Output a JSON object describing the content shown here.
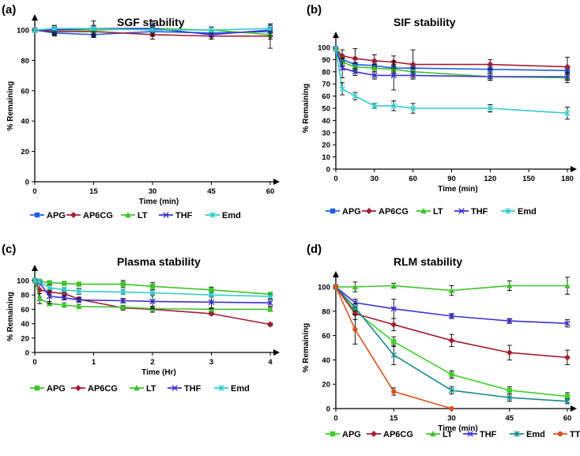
{
  "chart_data": [
    {
      "panel_label": "(a)",
      "type": "line",
      "title": "SGF stability",
      "xlabel": "Time (min)",
      "ylabel": "% Remaining",
      "xlim": [
        0,
        60
      ],
      "ylim": [
        0,
        100
      ],
      "xticks": [
        0,
        15,
        30,
        45,
        60
      ],
      "yticks": [
        0,
        20,
        40,
        60,
        80,
        100
      ],
      "x": [
        0,
        5,
        15,
        30,
        45,
        60
      ],
      "series": [
        {
          "name": "APG",
          "color": "#1f5fe0",
          "marker": "square",
          "values": [
            100,
            98,
            97,
            99,
            98,
            99
          ],
          "errors": [
            0,
            2,
            2,
            3,
            2,
            3
          ]
        },
        {
          "name": "AP6CG",
          "color": "#a41e34",
          "marker": "diamond",
          "values": [
            100,
            99,
            99,
            97,
            96,
            96
          ],
          "errors": [
            0,
            2,
            3,
            3,
            2,
            8
          ]
        },
        {
          "name": "LT",
          "color": "#3ec32a",
          "marker": "triangle",
          "values": [
            100,
            100,
            100,
            101,
            100,
            97
          ],
          "errors": [
            0,
            2,
            3,
            2,
            2,
            3
          ]
        },
        {
          "name": "THF",
          "color": "#3c2fd0",
          "marker": "x",
          "values": [
            100,
            100,
            101,
            101,
            97,
            100
          ],
          "errors": [
            0,
            3,
            5,
            5,
            3,
            4
          ]
        },
        {
          "name": "Emd",
          "color": "#33cccc",
          "marker": "star",
          "values": [
            100,
            101,
            101,
            100,
            100,
            101
          ],
          "errors": [
            0,
            2,
            2,
            2,
            2,
            2
          ]
        }
      ]
    },
    {
      "panel_label": "(b)",
      "type": "line",
      "title": "SIF stability",
      "xlabel": "Time (min)",
      "ylabel": "% Remaining",
      "xlim": [
        0,
        180
      ],
      "ylim": [
        0,
        100
      ],
      "xticks": [
        0,
        30,
        60,
        90,
        120,
        150,
        180
      ],
      "yticks": [
        0,
        10,
        20,
        30,
        40,
        50,
        60,
        70,
        80,
        90,
        100
      ],
      "x": [
        0,
        5,
        15,
        30,
        45,
        60,
        120,
        180
      ],
      "series": [
        {
          "name": "APG",
          "color": "#1f5fe0",
          "marker": "square",
          "values": [
            99,
            90,
            86,
            85,
            83,
            83,
            82,
            81
          ],
          "errors": [
            0,
            3,
            4,
            3,
            3,
            3,
            3,
            3
          ]
        },
        {
          "name": "AP6CG",
          "color": "#a41e34",
          "marker": "diamond",
          "values": [
            99,
            93,
            91,
            89,
            88,
            86,
            86,
            84
          ],
          "errors": [
            0,
            5,
            8,
            5,
            5,
            12,
            4,
            8
          ]
        },
        {
          "name": "LT",
          "color": "#3ec32a",
          "marker": "triangle",
          "values": [
            99,
            88,
            84,
            83,
            82,
            80,
            76,
            75
          ],
          "errors": [
            0,
            3,
            3,
            3,
            3,
            3,
            3,
            4
          ]
        },
        {
          "name": "THF",
          "color": "#3c2fd0",
          "marker": "x",
          "values": [
            99,
            83,
            80,
            77,
            77,
            77,
            76,
            76
          ],
          "errors": [
            0,
            8,
            3,
            3,
            12,
            3,
            3,
            3
          ]
        },
        {
          "name": "Emd",
          "color": "#33cccc",
          "marker": "star",
          "values": [
            99,
            66,
            60,
            52,
            52,
            50,
            50,
            46
          ],
          "errors": [
            0,
            5,
            3,
            2,
            4,
            4,
            3,
            5
          ]
        }
      ]
    },
    {
      "panel_label": "(c)",
      "type": "line",
      "title": "Plasma stability",
      "xlabel": "Time (Hr)",
      "ylabel": "% Remaining",
      "xlim": [
        0,
        4
      ],
      "ylim": [
        0,
        100
      ],
      "xticks": [
        0,
        1,
        2,
        3,
        4
      ],
      "yticks": [
        0,
        20,
        40,
        60,
        80,
        100
      ],
      "x": [
        0,
        0.083,
        0.25,
        0.5,
        0.75,
        1.5,
        2,
        3,
        4
      ],
      "series": [
        {
          "name": "APG",
          "color": "#3ec32a",
          "marker": "square",
          "values": [
            100,
            99,
            97,
            96,
            95,
            95,
            92,
            87,
            81
          ],
          "errors": [
            0,
            2,
            2,
            2,
            2,
            5,
            5,
            4,
            2
          ]
        },
        {
          "name": "AP6CG",
          "color": "#a41e34",
          "marker": "diamond",
          "values": [
            100,
            87,
            84,
            82,
            74,
            62,
            60,
            54,
            39
          ],
          "errors": [
            0,
            10,
            4,
            4,
            3,
            3,
            4,
            2,
            2
          ]
        },
        {
          "name": "LT",
          "color": "#3ec32a",
          "marker": "triangle",
          "values": [
            100,
            75,
            68,
            66,
            64,
            63,
            61,
            60,
            60
          ],
          "errors": [
            0,
            7,
            3,
            3,
            3,
            2,
            2,
            2,
            2
          ]
        },
        {
          "name": "THF",
          "color": "#3c2fd0",
          "marker": "x",
          "values": [
            100,
            97,
            78,
            76,
            73,
            72,
            71,
            70,
            69
          ],
          "errors": [
            0,
            2,
            10,
            3,
            3,
            3,
            10,
            9,
            5
          ]
        },
        {
          "name": "Emd",
          "color": "#33cccc",
          "marker": "star",
          "values": [
            100,
            98,
            90,
            87,
            85,
            84,
            83,
            80,
            78
          ],
          "errors": [
            0,
            2,
            4,
            3,
            4,
            3,
            4,
            3,
            3
          ]
        }
      ]
    },
    {
      "panel_label": "(d)",
      "type": "line",
      "title": "RLM stability",
      "xlabel": "Time (min)",
      "ylabel": "% Remaining",
      "xlim": [
        0,
        60
      ],
      "ylim": [
        0,
        100
      ],
      "xticks": [
        0,
        15,
        30,
        45,
        60
      ],
      "yticks": [
        0,
        20,
        40,
        60,
        80,
        100
      ],
      "x": [
        0,
        5,
        15,
        30,
        45,
        60
      ],
      "series": [
        {
          "name": "APG",
          "color": "#3ecf2a",
          "marker": "square",
          "values": [
            100,
            80,
            55,
            28,
            15,
            10
          ],
          "errors": [
            0,
            3,
            4,
            3,
            3,
            3
          ]
        },
        {
          "name": "AP6CG",
          "color": "#a41e34",
          "marker": "diamond",
          "values": [
            100,
            78,
            69,
            56,
            46,
            42
          ],
          "errors": [
            0,
            5,
            5,
            5,
            6,
            6
          ]
        },
        {
          "name": "LT",
          "color": "#3ec32a",
          "marker": "triangle",
          "values": [
            100,
            100,
            101,
            97,
            101,
            101
          ],
          "errors": [
            0,
            4,
            2,
            4,
            4,
            7
          ]
        },
        {
          "name": "THF",
          "color": "#3c2fd0",
          "marker": "x",
          "values": [
            100,
            87,
            82,
            76,
            72,
            70
          ],
          "errors": [
            0,
            3,
            8,
            2,
            2,
            3
          ]
        },
        {
          "name": "Emd",
          "color": "#1a8a8a",
          "marker": "star",
          "values": [
            100,
            83,
            44,
            15,
            9,
            6
          ],
          "errors": [
            0,
            3,
            8,
            3,
            3,
            2
          ]
        },
        {
          "name": "TT",
          "color": "#d9531e",
          "marker": "circle",
          "x": [
            0,
            5,
            15,
            30
          ],
          "values": [
            100,
            65,
            14,
            0
          ],
          "errors": [
            0,
            12,
            3,
            0
          ]
        }
      ]
    }
  ]
}
